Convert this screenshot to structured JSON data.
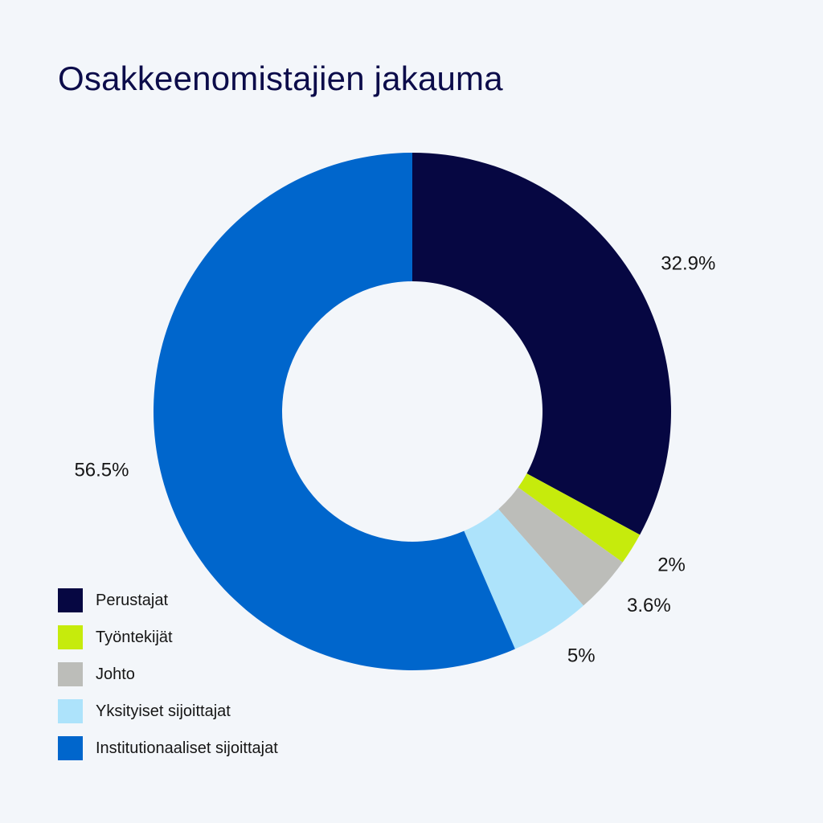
{
  "chart_data": {
    "type": "pie",
    "title": "Osakkeenomistajien jakauma",
    "donut": true,
    "start": "top",
    "direction": "clockwise",
    "legend_position": "bottom-left",
    "slices": [
      {
        "label": "Perustajat",
        "value": 32.9,
        "value_label": "32.9%",
        "color": "#060742"
      },
      {
        "label": "Työntekijät",
        "value": 2,
        "value_label": "2%",
        "color": "#c6eb0c"
      },
      {
        "label": "Johto",
        "value": 3.6,
        "value_label": "3.6%",
        "color": "#bcbdb9"
      },
      {
        "label": "Yksityiset sijoittajat",
        "value": 5,
        "value_label": "5%",
        "color": "#ade3fb"
      },
      {
        "label": "Institutionaaliset sijoittajat",
        "value": 56.5,
        "value_label": "56.5%",
        "color": "#0066cc"
      }
    ]
  }
}
